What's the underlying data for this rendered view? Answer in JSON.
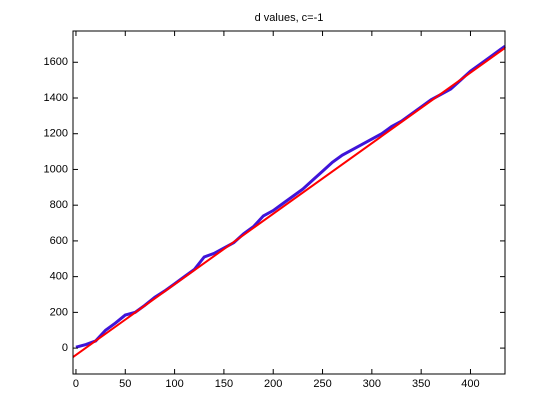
{
  "chart_data": {
    "type": "line",
    "title": "d values, c=-1",
    "series": [
      {
        "color": "#3f14d9",
        "x": [
          0,
          10,
          20,
          30,
          40,
          50,
          60,
          70,
          80,
          90,
          100,
          110,
          120,
          130,
          140,
          150,
          160,
          170,
          180,
          190,
          200,
          210,
          220,
          230,
          240,
          250,
          260,
          270,
          280,
          290,
          300,
          310,
          320,
          330,
          340,
          350,
          360,
          370,
          380,
          390,
          400,
          410,
          420,
          430,
          435
        ],
        "values": [
          5,
          20,
          40,
          100,
          140,
          185,
          200,
          240,
          285,
          320,
          360,
          400,
          440,
          510,
          530,
          560,
          590,
          640,
          680,
          740,
          770,
          810,
          850,
          890,
          940,
          990,
          1040,
          1080,
          1110,
          1140,
          1170,
          1200,
          1240,
          1270,
          1310,
          1350,
          1390,
          1420,
          1450,
          1500,
          1550,
          1590,
          1630,
          1670,
          1690
        ]
      },
      {
        "color": "#ff0000",
        "x": [
          -3,
          435
        ],
        "values": [
          -50,
          1680
        ]
      }
    ],
    "xlim": [
      -3,
      435
    ],
    "xticks": [
      0,
      50,
      100,
      150,
      200,
      250,
      300,
      350,
      400
    ],
    "ylim": [
      -145,
      1775
    ],
    "yticks": [
      0,
      200,
      400,
      600,
      800,
      1000,
      1200,
      1400,
      1600
    ]
  }
}
